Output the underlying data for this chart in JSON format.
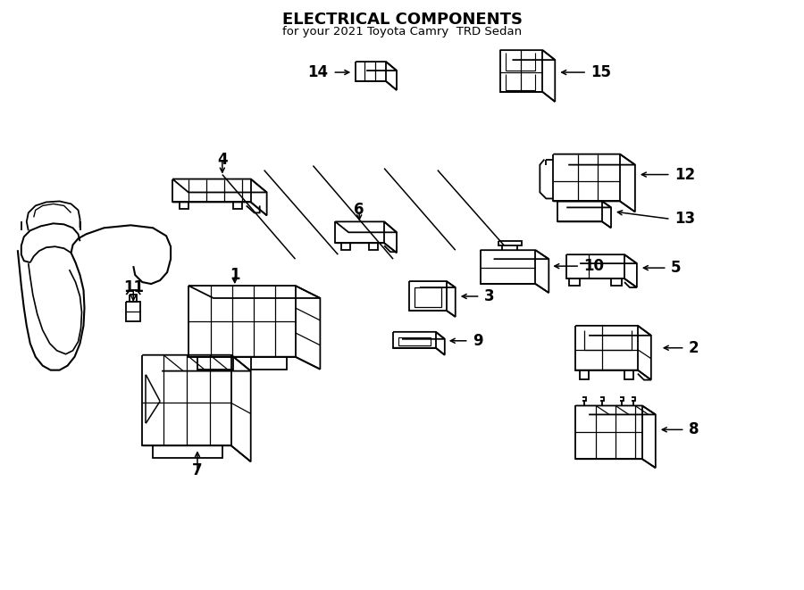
{
  "title": "ELECTRICAL COMPONENTS",
  "subtitle": "for your 2021 Toyota Camry  TRD Sedan",
  "background_color": "#ffffff",
  "line_color": "#000000",
  "figsize": [
    9.0,
    6.61
  ],
  "dpi": 100
}
